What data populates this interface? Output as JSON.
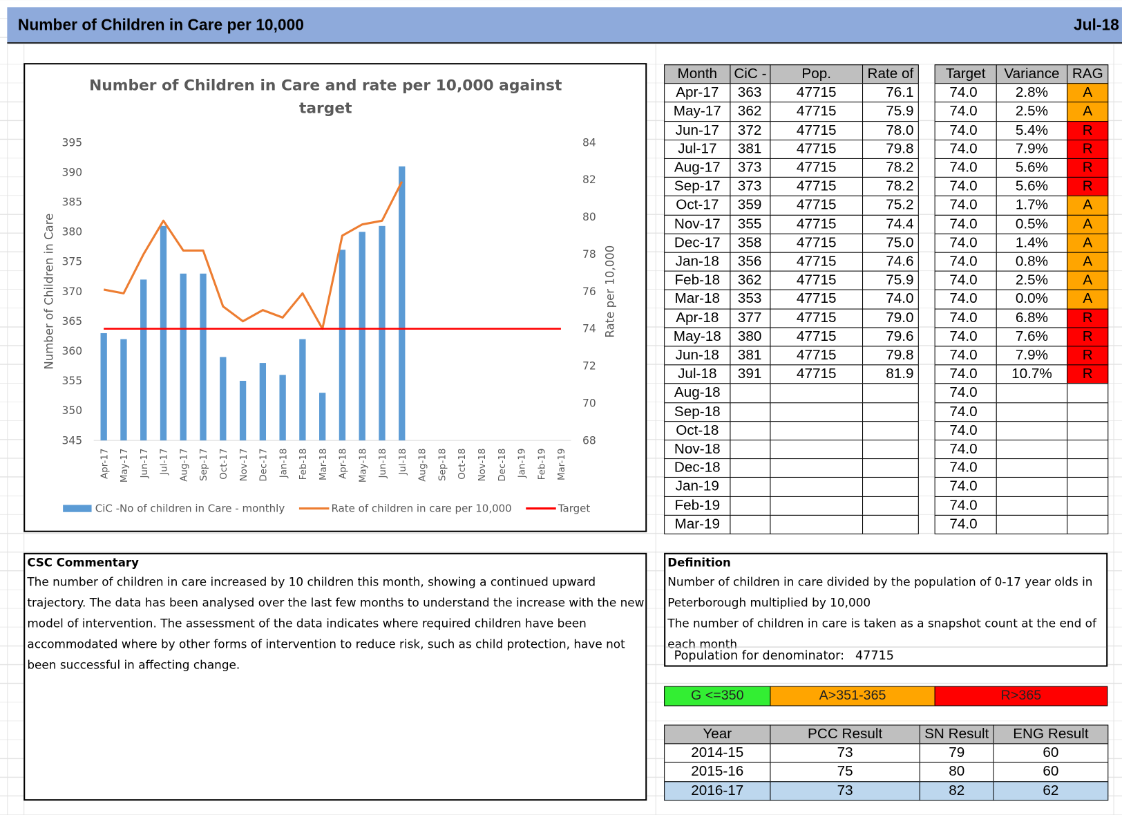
{
  "header": {
    "title": "Number of Children in Care per 10,000",
    "date": "Jul-18"
  },
  "chart_data": {
    "type": "combo",
    "title": "Number of Children in Care and rate per 10,000 against target",
    "categories": [
      "Apr-17",
      "May-17",
      "Jun-17",
      "Jul-17",
      "Aug-17",
      "Sep-17",
      "Oct-17",
      "Nov-17",
      "Dec-17",
      "Jan-18",
      "Feb-18",
      "Mar-18",
      "Apr-18",
      "May-18",
      "Jun-18",
      "Jul-18",
      "Aug-18",
      "Sep-18",
      "Oct-18",
      "Nov-18",
      "Dec-18",
      "Jan-19",
      "Feb-19",
      "Mar-19"
    ],
    "series": [
      {
        "name": "CiC -No of children in Care - monthly",
        "type": "bar",
        "color": "#5b9bd5",
        "values": [
          363,
          362,
          372,
          381,
          373,
          373,
          359,
          355,
          358,
          356,
          362,
          353,
          377,
          380,
          381,
          391,
          null,
          null,
          null,
          null,
          null,
          null,
          null,
          null
        ]
      },
      {
        "name": "Rate of children in care per 10,000",
        "type": "line",
        "axis": "y2",
        "color": "#ed7d31",
        "values": [
          76.1,
          75.9,
          78.0,
          79.8,
          78.2,
          78.2,
          75.2,
          74.4,
          75.0,
          74.6,
          75.9,
          74.0,
          79.0,
          79.6,
          79.8,
          81.9,
          null,
          null,
          null,
          null,
          null,
          null,
          null,
          null
        ]
      },
      {
        "name": "Target",
        "type": "line",
        "axis": "y2",
        "color": "#ff0000",
        "values": [
          74,
          74,
          74,
          74,
          74,
          74,
          74,
          74,
          74,
          74,
          74,
          74,
          74,
          74,
          74,
          74,
          74,
          74,
          74,
          74,
          74,
          74,
          74,
          74
        ]
      }
    ],
    "ylabel": "Number of Children in Care",
    "y2label": "Rate per 10,000",
    "ylim": [
      345,
      395
    ],
    "yticks": [
      345,
      350,
      355,
      360,
      365,
      370,
      375,
      380,
      385,
      390,
      395
    ],
    "y2lim": [
      68,
      84
    ],
    "y2ticks": [
      68,
      70,
      72,
      74,
      76,
      78,
      80,
      82,
      84
    ],
    "grid": false,
    "legend": "bottom"
  },
  "table": {
    "headers": {
      "month": "Month",
      "cic": "CiC -",
      "pop": "Pop.",
      "rate": "Rate of",
      "target": "Target",
      "variance": "Variance",
      "rag": "RAG"
    },
    "rows": [
      {
        "month": "Apr-17",
        "cic": 363,
        "pop": 47715,
        "rate": "76.1",
        "target": "74.0",
        "variance": "2.8%",
        "rag": "A"
      },
      {
        "month": "May-17",
        "cic": 362,
        "pop": 47715,
        "rate": "75.9",
        "target": "74.0",
        "variance": "2.5%",
        "rag": "A"
      },
      {
        "month": "Jun-17",
        "cic": 372,
        "pop": 47715,
        "rate": "78.0",
        "target": "74.0",
        "variance": "5.4%",
        "rag": "R"
      },
      {
        "month": "Jul-17",
        "cic": 381,
        "pop": 47715,
        "rate": "79.8",
        "target": "74.0",
        "variance": "7.9%",
        "rag": "R"
      },
      {
        "month": "Aug-17",
        "cic": 373,
        "pop": 47715,
        "rate": "78.2",
        "target": "74.0",
        "variance": "5.6%",
        "rag": "R"
      },
      {
        "month": "Sep-17",
        "cic": 373,
        "pop": 47715,
        "rate": "78.2",
        "target": "74.0",
        "variance": "5.6%",
        "rag": "R"
      },
      {
        "month": "Oct-17",
        "cic": 359,
        "pop": 47715,
        "rate": "75.2",
        "target": "74.0",
        "variance": "1.7%",
        "rag": "A"
      },
      {
        "month": "Nov-17",
        "cic": 355,
        "pop": 47715,
        "rate": "74.4",
        "target": "74.0",
        "variance": "0.5%",
        "rag": "A"
      },
      {
        "month": "Dec-17",
        "cic": 358,
        "pop": 47715,
        "rate": "75.0",
        "target": "74.0",
        "variance": "1.4%",
        "rag": "A"
      },
      {
        "month": "Jan-18",
        "cic": 356,
        "pop": 47715,
        "rate": "74.6",
        "target": "74.0",
        "variance": "0.8%",
        "rag": "A"
      },
      {
        "month": "Feb-18",
        "cic": 362,
        "pop": 47715,
        "rate": "75.9",
        "target": "74.0",
        "variance": "2.5%",
        "rag": "A"
      },
      {
        "month": "Mar-18",
        "cic": 353,
        "pop": 47715,
        "rate": "74.0",
        "target": "74.0",
        "variance": "0.0%",
        "rag": "A"
      },
      {
        "month": "Apr-18",
        "cic": 377,
        "pop": 47715,
        "rate": "79.0",
        "target": "74.0",
        "variance": "6.8%",
        "rag": "R"
      },
      {
        "month": "May-18",
        "cic": 380,
        "pop": 47715,
        "rate": "79.6",
        "target": "74.0",
        "variance": "7.6%",
        "rag": "R"
      },
      {
        "month": "Jun-18",
        "cic": 381,
        "pop": 47715,
        "rate": "79.8",
        "target": "74.0",
        "variance": "7.9%",
        "rag": "R"
      },
      {
        "month": "Jul-18",
        "cic": 391,
        "pop": 47715,
        "rate": "81.9",
        "target": "74.0",
        "variance": "10.7%",
        "rag": "R"
      },
      {
        "month": "Aug-18",
        "target": "74.0"
      },
      {
        "month": "Sep-18",
        "target": "74.0"
      },
      {
        "month": "Oct-18",
        "target": "74.0"
      },
      {
        "month": "Nov-18",
        "target": "74.0"
      },
      {
        "month": "Dec-18",
        "target": "74.0"
      },
      {
        "month": "Jan-19",
        "target": "74.0"
      },
      {
        "month": "Feb-19",
        "target": "74.0"
      },
      {
        "month": "Mar-19",
        "target": "74.0"
      }
    ]
  },
  "commentary": {
    "title": "CSC Commentary",
    "text": "The number of children in care increased by 10  children this month, showing a continued  upward trajectory. The data has been analysed over the last few months to understand the increase with the new model of intervention. The assessment of the data indicates where required children have been accommodated where by other forms of intervention to reduce risk, such as child protection, have not been successful in affecting change."
  },
  "definition": {
    "title": "Definition",
    "lines": [
      "Number of children in care divided by the population of 0-17 year olds in Peterborough multiplied by 10,000",
      "The number of children in care is taken as a snapshot count at the end of each month"
    ],
    "population_label": "Population for denominator:",
    "population": 47715
  },
  "thresholds": {
    "green": "G <=350",
    "amber": "A>351-365",
    "red": "R>365"
  },
  "results": {
    "headers": {
      "year": "Year",
      "pcc": "PCC Result",
      "sn": "SN Result",
      "eng": "ENG Result"
    },
    "rows": [
      {
        "year": "2014-15",
        "pcc": 73,
        "sn": 79,
        "eng": 60
      },
      {
        "year": "2015-16",
        "pcc": 75,
        "sn": 80,
        "eng": 60
      },
      {
        "year": "2016-17",
        "pcc": 73,
        "sn": 82,
        "eng": 62
      }
    ]
  }
}
